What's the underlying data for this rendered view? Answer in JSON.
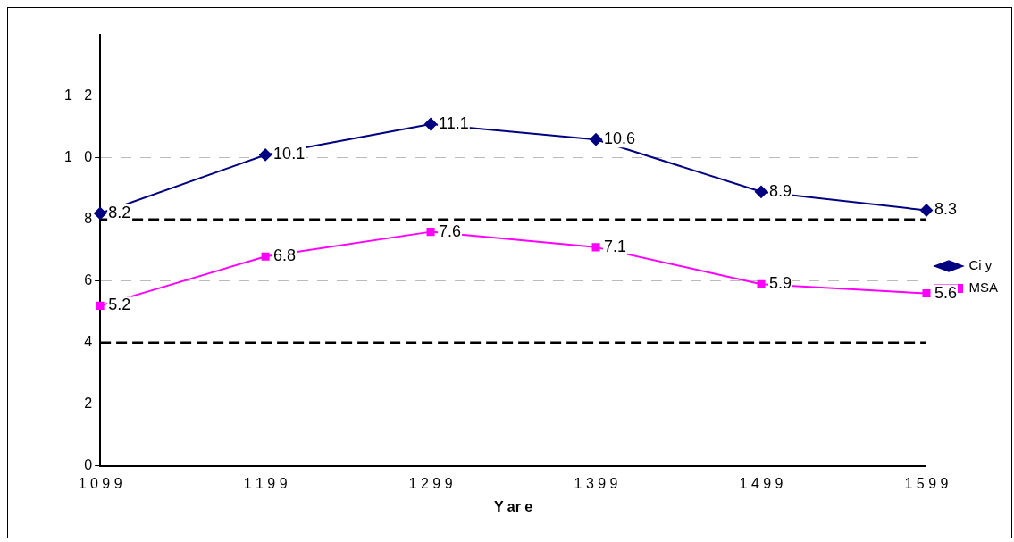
{
  "chart_data": {
    "type": "line",
    "xlabel": "Y ar e",
    "categories": [
      "1 0 9 9",
      "1 1 9 9",
      "1 2 9 9",
      "1 3 9 9",
      "1 4 9 9",
      "1 5 9 9"
    ],
    "series": [
      {
        "name": "Ci y",
        "color": "#000080",
        "marker": "diamond",
        "values": [
          8.2,
          10.1,
          11.1,
          10.6,
          8.9,
          8.3
        ]
      },
      {
        "name": "MSA",
        "color": "#ff00ff",
        "marker": "square",
        "values": [
          5.2,
          6.8,
          7.6,
          7.1,
          5.9,
          5.6
        ]
      }
    ],
    "ylim": [
      0,
      14
    ],
    "yticks": [
      0,
      2,
      4,
      6,
      {
        "value": 8,
        "label": "8"
      },
      {
        "value": 10,
        "label": "1   0"
      },
      {
        "value": 12,
        "label": "1   2"
      }
    ],
    "grid": "y",
    "legend": "right",
    "data_labels": true,
    "ref_lines": [
      {
        "axis": "y",
        "value": 4,
        "color": "#000000",
        "line_style": "dashed"
      },
      {
        "axis": "y",
        "value": 8,
        "color": "#000000",
        "line_style": "dashed"
      }
    ]
  }
}
